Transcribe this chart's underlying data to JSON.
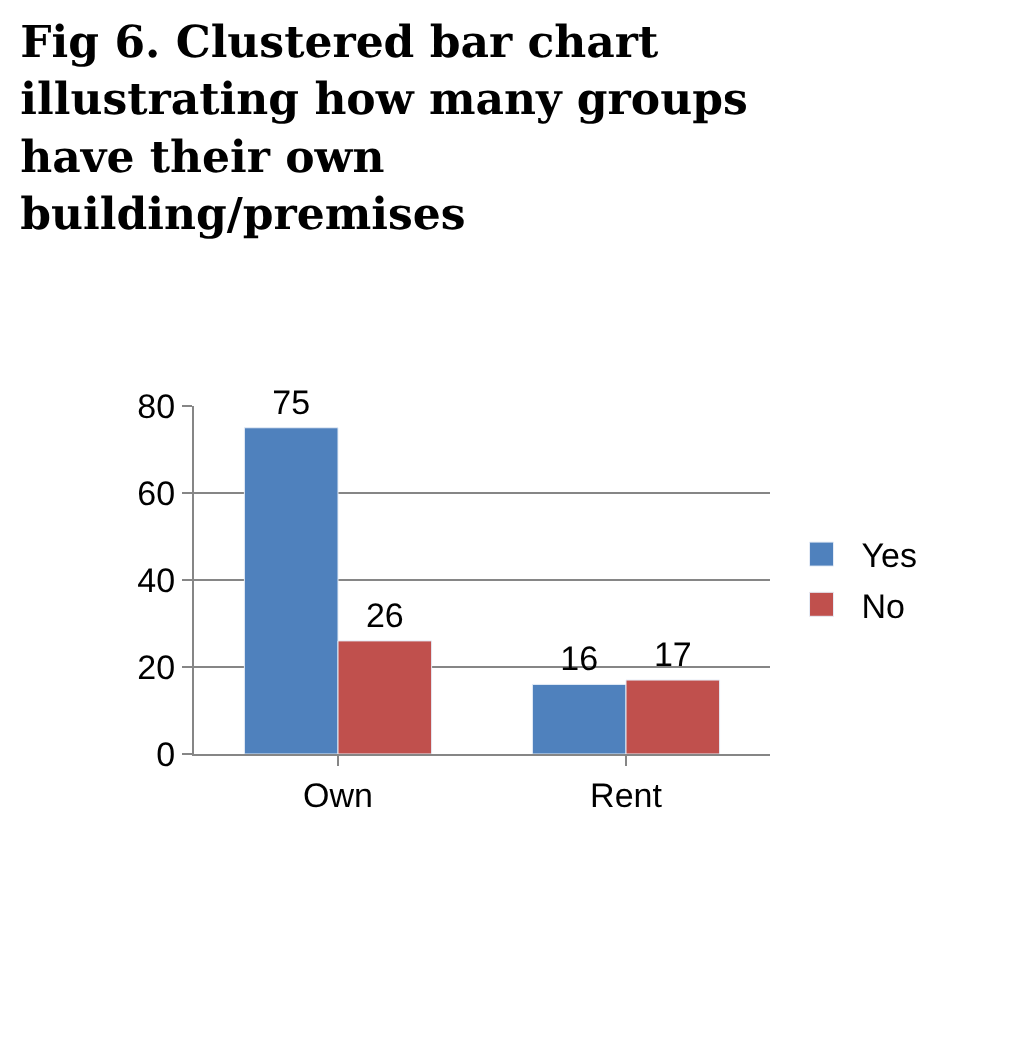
{
  "chart_data": {
    "type": "bar",
    "title": "Fig 6. Clustered bar chart\nillustrating how many groups\nhave their own\nbuilding/premises",
    "categories": [
      "Own",
      "Rent"
    ],
    "series": [
      {
        "name": "Yes",
        "color": "#4f81bd",
        "values": [
          75,
          16
        ]
      },
      {
        "name": "No",
        "color": "#c0504d",
        "values": [
          26,
          17
        ]
      }
    ],
    "ylim": [
      0,
      80
    ],
    "yticks": [
      0,
      20,
      40,
      60,
      80
    ],
    "grid": "y",
    "legend": "right",
    "data_labels": true
  }
}
